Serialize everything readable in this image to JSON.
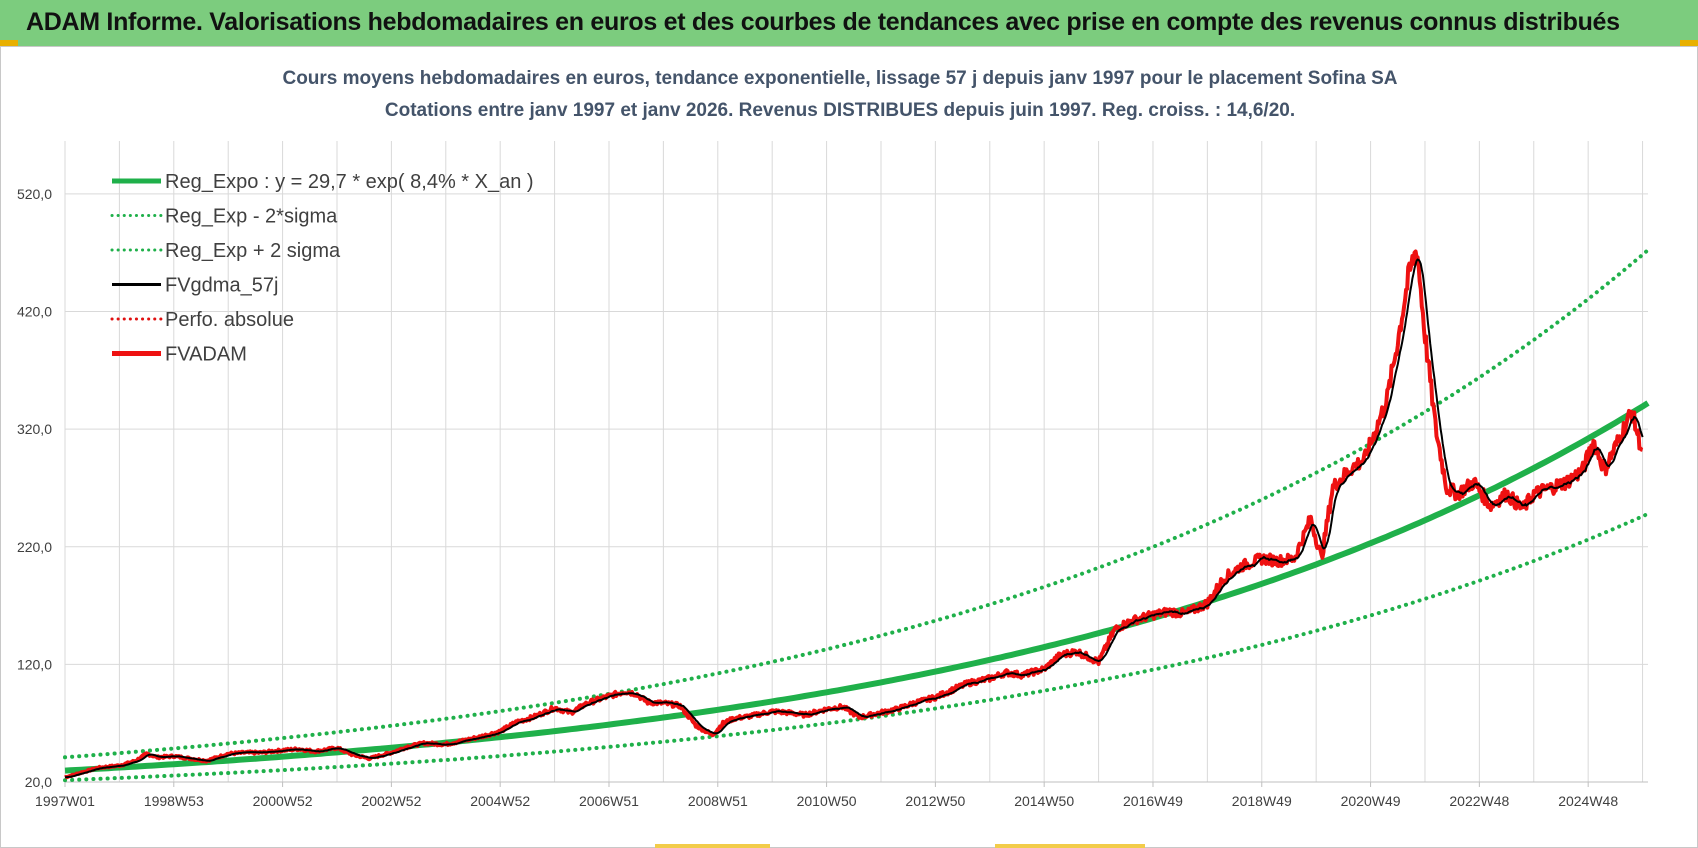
{
  "banner": {
    "title": "ADAM Informe. Valorisations hebdomadaires en euros et des courbes de tendances avec prise en compte des revenus connus distribués"
  },
  "colors": {
    "banner": "#7ccc7e",
    "reg_expo": "#1fb04a",
    "sigma": "#1fb04a",
    "fvgdma": "#000000",
    "perfo": "#e01010",
    "fvadam": "#ee1111",
    "title_text": "#44546a",
    "grid": "#d9d9d9"
  },
  "chart_data": {
    "type": "line",
    "title": "Cours moyens hebdomadaires en euros, tendance exponentielle, lissage 57 j depuis janv 1997 pour le placement Sofina SA",
    "subtitle": "Cotations entre janv 1997 et janv 2026. Revenus DISTRIBUES depuis juin 1997. Reg. croiss. : 14,6/20.",
    "xlabel": "",
    "ylabel": "",
    "ylim": [
      20,
      565
    ],
    "xlim": [
      1997.0,
      2026.1
    ],
    "grid": true,
    "legend_position": "top-left",
    "y_ticks": [
      "20,0",
      "120,0",
      "220,0",
      "320,0",
      "420,0",
      "520,0"
    ],
    "y_tick_values": [
      20,
      120,
      220,
      320,
      420,
      520
    ],
    "x_ticks": [
      "1997W01",
      "1998W53",
      "2000W52",
      "2002W52",
      "2004W52",
      "2006W51",
      "2008W51",
      "2010W50",
      "2012W50",
      "2014W50",
      "2016W49",
      "2018W49",
      "2020W49",
      "2022W48",
      "2024W48"
    ],
    "x_tick_values": [
      1997.0,
      1999.0,
      2001.0,
      2003.0,
      2005.0,
      2007.0,
      2009.0,
      2011.0,
      2013.0,
      2015.0,
      2017.0,
      2019.0,
      2021.0,
      2023.0,
      2025.0
    ],
    "regression": {
      "a": 29.7,
      "rate": 0.084,
      "sigma_factor": 1.38
    },
    "series": [
      {
        "name": "Reg_Expo : y = 29,7 * exp( 8,4% *  X_an )",
        "style": "solid-thick",
        "color": "#1fb04a",
        "kind": "reg"
      },
      {
        "name": "Reg_Exp - 2*sigma",
        "style": "dotted",
        "color": "#1fb04a",
        "kind": "reg_lo"
      },
      {
        "name": "Reg_Exp + 2 sigma",
        "style": "dotted",
        "color": "#1fb04a",
        "kind": "reg_hi"
      },
      {
        "name": "FVgdma_57j",
        "style": "solid",
        "color": "#000000",
        "kind": "smooth"
      },
      {
        "name": "Perfo. absolue",
        "style": "dotted",
        "color": "#e01010",
        "kind": "perfo"
      },
      {
        "name": "FVADAM",
        "style": "solid-thick",
        "color": "#ee1111",
        "kind": "data"
      }
    ],
    "fvadam": {
      "x": [
        1997.0,
        1997.3,
        1997.6,
        1998.0,
        1998.3,
        1998.5,
        1998.7,
        1999.0,
        1999.3,
        1999.6,
        2000.0,
        2000.3,
        2000.6,
        2001.0,
        2001.3,
        2001.6,
        2002.0,
        2002.3,
        2002.6,
        2003.0,
        2003.3,
        2003.6,
        2004.0,
        2004.3,
        2004.6,
        2005.0,
        2005.3,
        2005.6,
        2006.0,
        2006.3,
        2006.6,
        2007.0,
        2007.3,
        2007.5,
        2007.7,
        2008.0,
        2008.3,
        2008.6,
        2008.9,
        2009.1,
        2009.3,
        2009.6,
        2010.0,
        2010.3,
        2010.6,
        2011.0,
        2011.3,
        2011.6,
        2012.0,
        2012.3,
        2012.6,
        2013.0,
        2013.3,
        2013.6,
        2014.0,
        2014.3,
        2014.6,
        2015.0,
        2015.3,
        2015.6,
        2016.0,
        2016.3,
        2016.6,
        2017.0,
        2017.3,
        2017.6,
        2018.0,
        2018.3,
        2018.6,
        2019.0,
        2019.3,
        2019.6,
        2019.9,
        2020.1,
        2020.3,
        2020.6,
        2020.9,
        2021.1,
        2021.3,
        2021.5,
        2021.7,
        2021.85,
        2022.0,
        2022.2,
        2022.4,
        2022.6,
        2022.9,
        2023.2,
        2023.5,
        2023.8,
        2024.0,
        2024.3,
        2024.6,
        2024.9,
        2025.1,
        2025.3,
        2025.5,
        2025.8,
        2026.0
      ],
      "y": [
        24,
        28,
        32,
        34,
        38,
        44,
        41,
        42,
        40,
        38,
        44,
        45,
        45,
        47,
        48,
        46,
        49,
        43,
        40,
        45,
        50,
        53,
        52,
        55,
        58,
        63,
        71,
        75,
        83,
        79,
        87,
        93,
        97,
        95,
        88,
        87,
        85,
        68,
        60,
        70,
        74,
        76,
        80,
        79,
        77,
        82,
        84,
        75,
        79,
        82,
        87,
        92,
        98,
        104,
        108,
        113,
        111,
        116,
        128,
        131,
        122,
        150,
        157,
        162,
        165,
        163,
        172,
        193,
        203,
        210,
        208,
        210,
        244,
        210,
        270,
        285,
        295,
        320,
        345,
        395,
        450,
        475,
        400,
        320,
        270,
        265,
        275,
        255,
        265,
        252,
        265,
        270,
        275,
        285,
        310,
        285,
        305,
        335,
        300
      ],
      "note_interp": "linear"
    }
  }
}
